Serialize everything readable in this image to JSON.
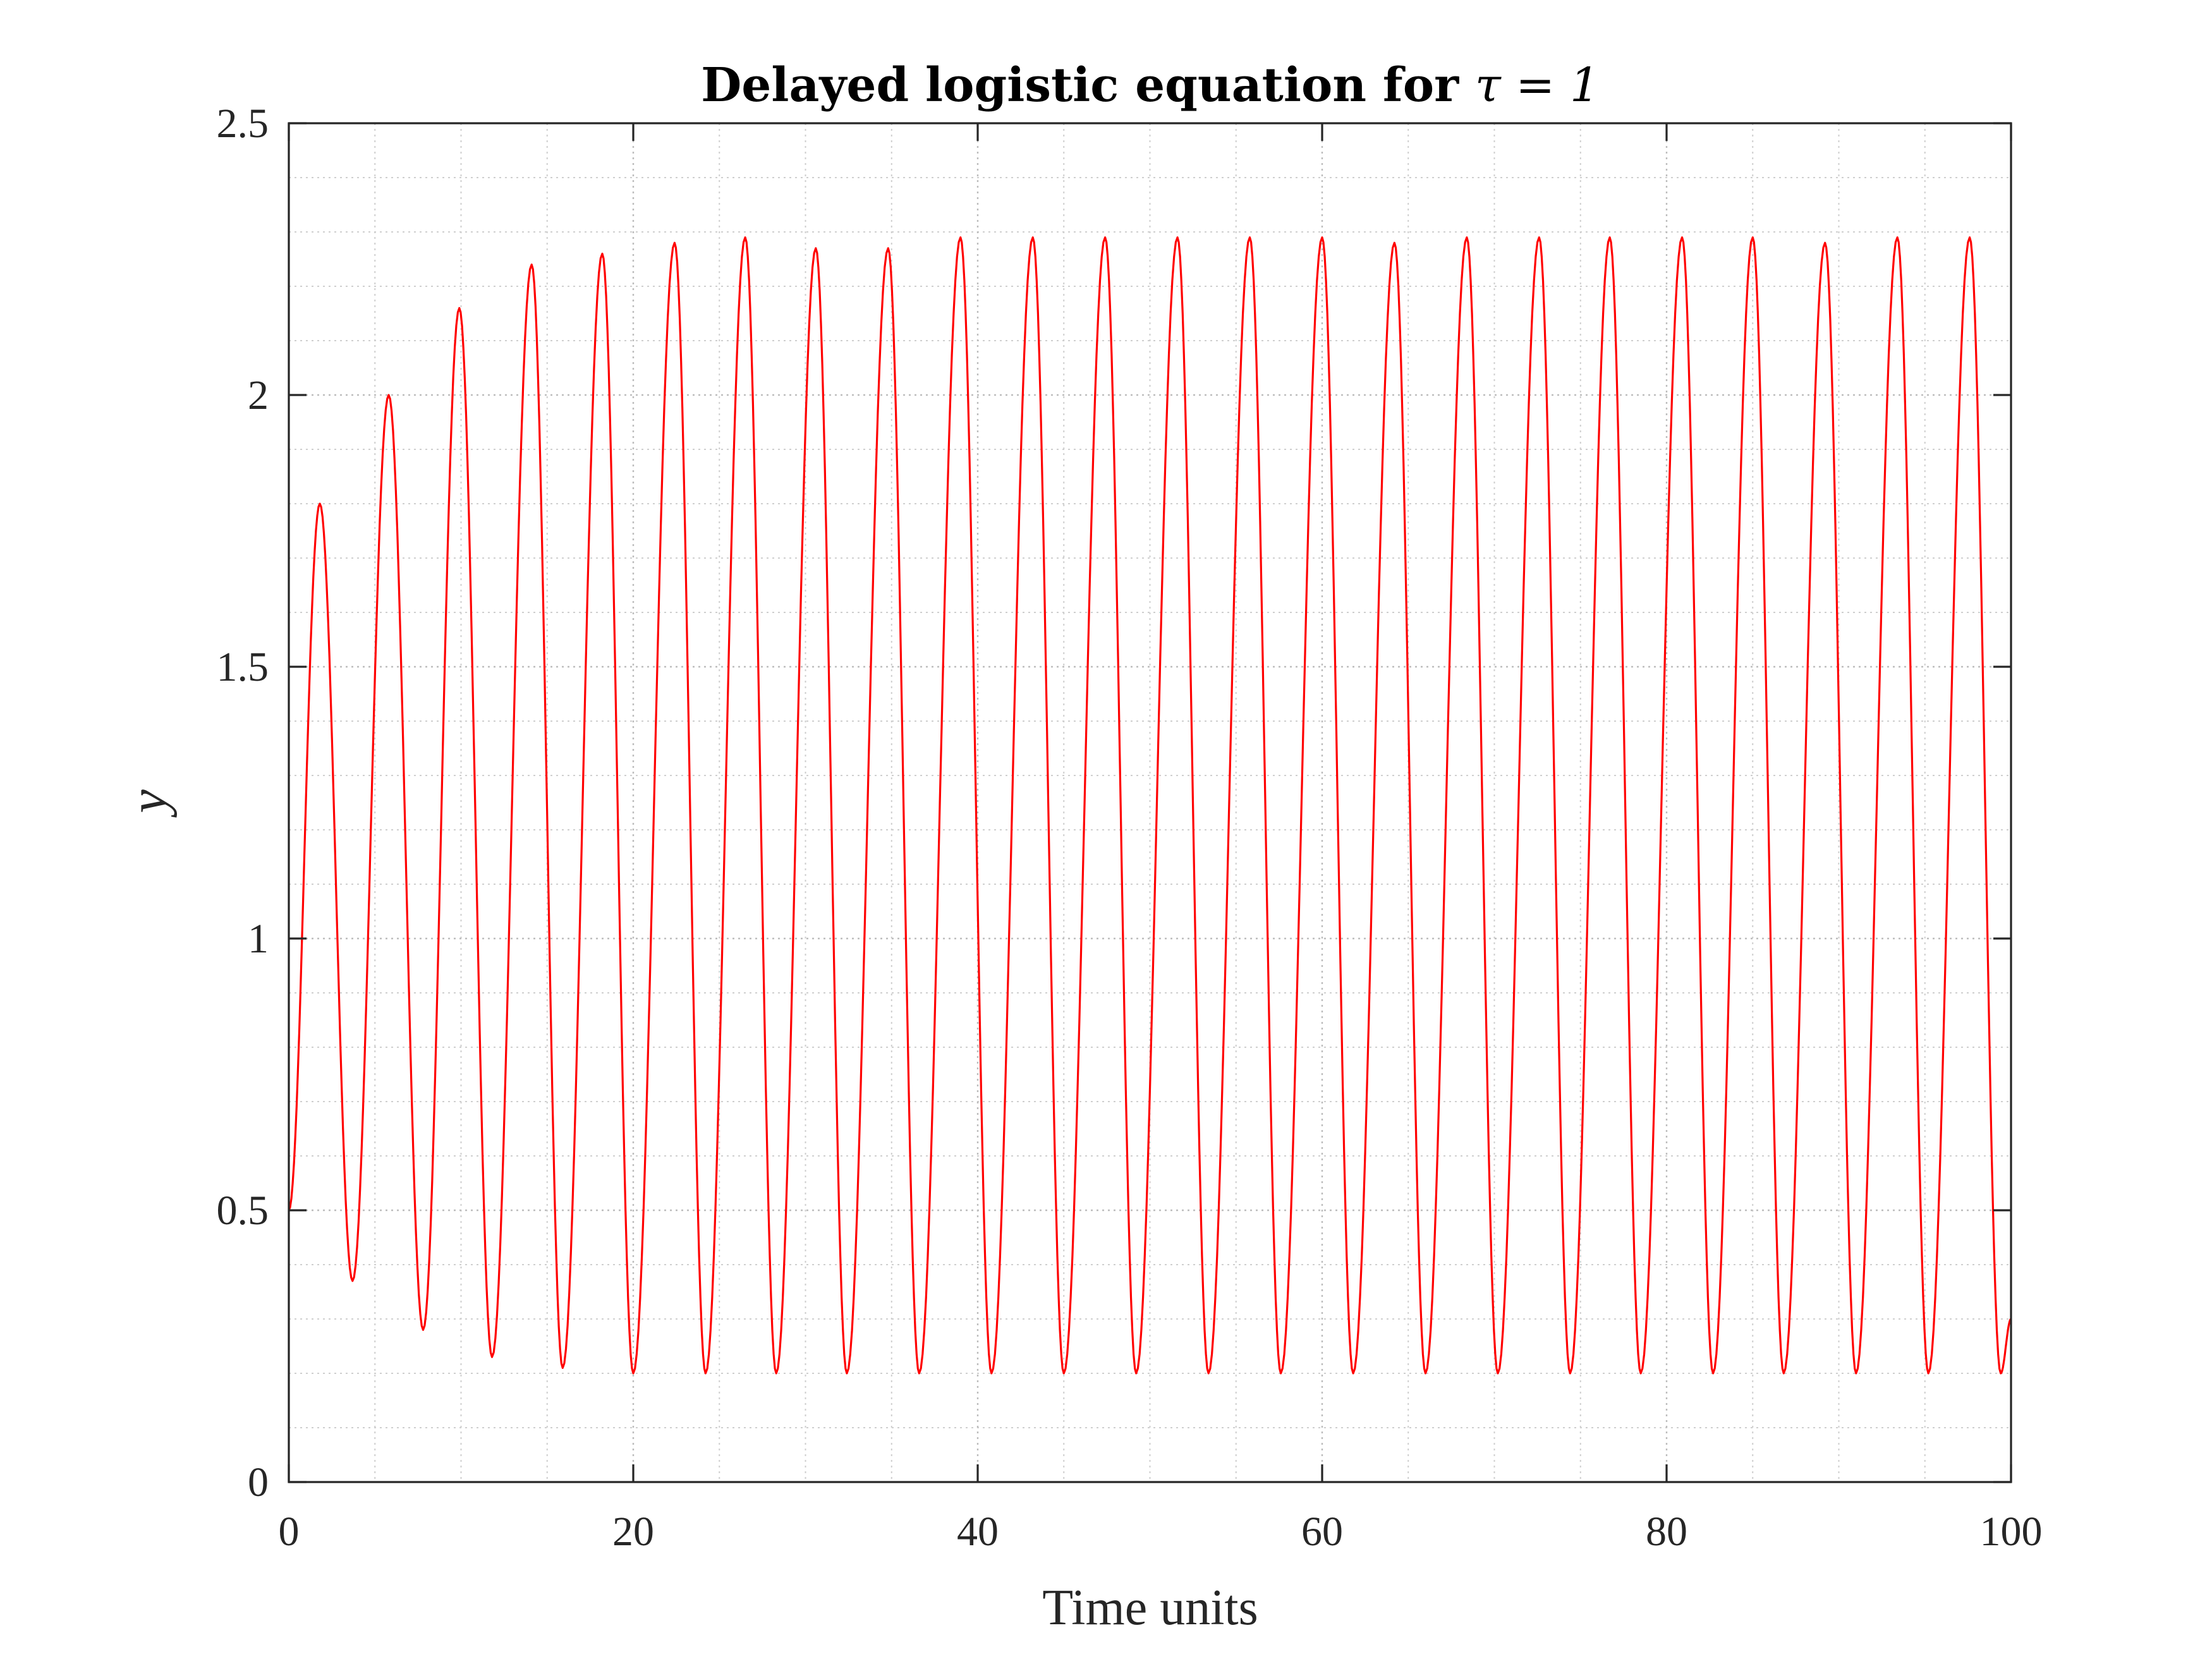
{
  "chart_data": {
    "type": "line",
    "title": "Delayed logistic equation for",
    "title_math": "τ = 1",
    "xlabel": "Time units",
    "ylabel": "y",
    "xlim": [
      0,
      100
    ],
    "ylim": [
      0,
      2.5
    ],
    "xticks": [
      0,
      20,
      40,
      60,
      80,
      100
    ],
    "xtick_labels": [
      "0",
      "20",
      "40",
      "60",
      "80",
      "100"
    ],
    "yticks": [
      0,
      0.5,
      1,
      1.5,
      2,
      2.5
    ],
    "ytick_labels": [
      "0",
      "0.5",
      "1",
      "1.5",
      "2",
      "2.5"
    ],
    "grid": true,
    "minor_grid": true,
    "series": [
      {
        "color": "#ff0000",
        "x": [
          0,
          1.8,
          3.7,
          5.8,
          7.8,
          9.9,
          11.8,
          14.1,
          15.9,
          18.2,
          20.0,
          22.4,
          24.2,
          26.5,
          28.3,
          30.6,
          32.4,
          34.8,
          36.6,
          39.0,
          40.8,
          43.2,
          45.0,
          47.4,
          49.2,
          51.6,
          53.4,
          55.8,
          57.6,
          60.0,
          61.8,
          64.2,
          66.0,
          68.4,
          70.2,
          72.6,
          74.4,
          76.7,
          78.5,
          80.9,
          82.7,
          85.0,
          86.8,
          89.2,
          91.0,
          93.4,
          95.2,
          97.6,
          99.4,
          100
        ],
        "y": [
          0.5,
          1.8,
          0.37,
          2.0,
          0.28,
          2.16,
          0.23,
          2.24,
          0.21,
          2.26,
          0.2,
          2.28,
          0.2,
          2.29,
          0.2,
          2.27,
          0.2,
          2.27,
          0.2,
          2.29,
          0.2,
          2.29,
          0.2,
          2.29,
          0.2,
          2.29,
          0.2,
          2.29,
          0.2,
          2.29,
          0.2,
          2.28,
          0.2,
          2.29,
          0.2,
          2.29,
          0.2,
          2.29,
          0.2,
          2.29,
          0.2,
          2.29,
          0.2,
          2.28,
          0.2,
          2.29,
          0.2,
          2.29,
          0.2,
          0.3
        ]
      }
    ]
  }
}
